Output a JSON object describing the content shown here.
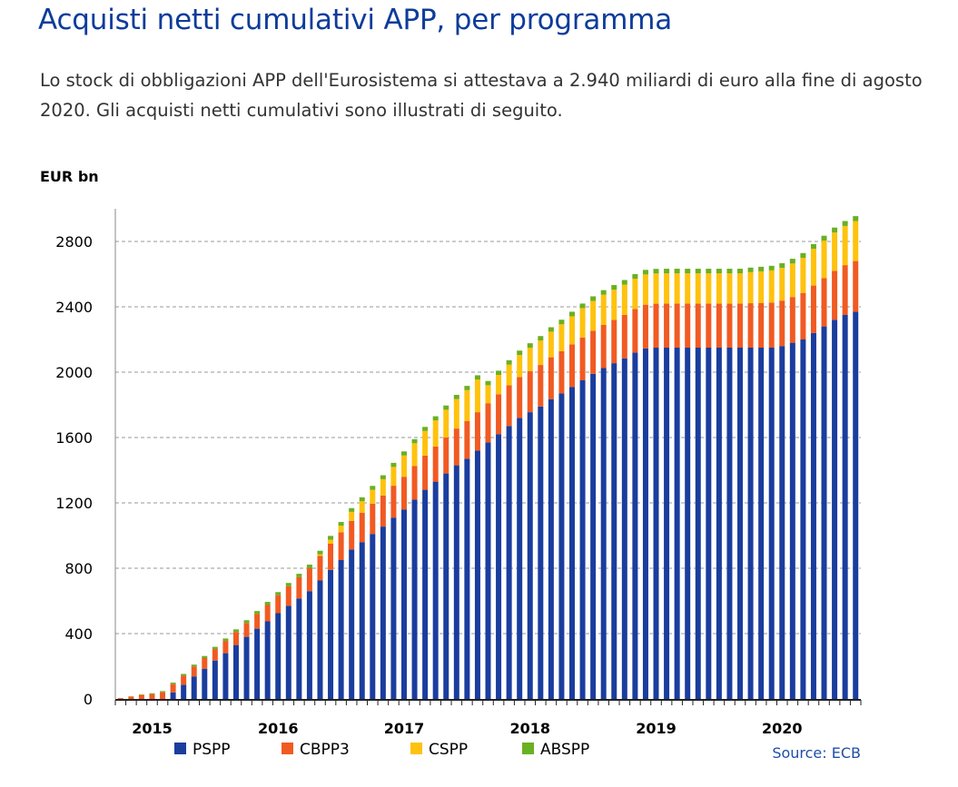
{
  "header": {
    "title": "Acquisti netti cumulativi APP, per programma",
    "intro": "Lo stock di obbligazioni APP dell'Eurosistema si attestava a 2.940 miliardi di euro alla fine di agosto 2020. Gli acquisti netti cumulativi sono illustrati di seguito."
  },
  "chart_data": {
    "type": "bar",
    "stacked": true,
    "unit_label": "EUR bn",
    "xlabel": "",
    "ylabel": "",
    "ylim": [
      0,
      2900
    ],
    "yticks": [
      0,
      400,
      800,
      1200,
      1600,
      2000,
      2400,
      2800
    ],
    "grid": "horizontal dashed",
    "legend_position": "bottom",
    "source": "Source: ECB",
    "year_ticks": [
      {
        "label": "2015",
        "index": 3
      },
      {
        "label": "2016",
        "index": 15
      },
      {
        "label": "2017",
        "index": 27
      },
      {
        "label": "2018",
        "index": 39
      },
      {
        "label": "2019",
        "index": 51
      },
      {
        "label": "2020",
        "index": 63
      }
    ],
    "categories": [
      "2014-10",
      "2014-11",
      "2014-12",
      "2015-01",
      "2015-02",
      "2015-03",
      "2015-04",
      "2015-05",
      "2015-06",
      "2015-07",
      "2015-08",
      "2015-09",
      "2015-10",
      "2015-11",
      "2015-12",
      "2016-01",
      "2016-02",
      "2016-03",
      "2016-04",
      "2016-05",
      "2016-06",
      "2016-07",
      "2016-08",
      "2016-09",
      "2016-10",
      "2016-11",
      "2016-12",
      "2017-01",
      "2017-02",
      "2017-03",
      "2017-04",
      "2017-05",
      "2017-06",
      "2017-07",
      "2017-08",
      "2017-09",
      "2017-10",
      "2017-11",
      "2017-12",
      "2018-01",
      "2018-02",
      "2018-03",
      "2018-04",
      "2018-05",
      "2018-06",
      "2018-07",
      "2018-08",
      "2018-09",
      "2018-10",
      "2018-11",
      "2018-12",
      "2019-01",
      "2019-02",
      "2019-03",
      "2019-04",
      "2019-05",
      "2019-06",
      "2019-07",
      "2019-08",
      "2019-09",
      "2019-10",
      "2019-11",
      "2019-12",
      "2020-01",
      "2020-02",
      "2020-03",
      "2020-04",
      "2020-05",
      "2020-06",
      "2020-07",
      "2020-08"
    ],
    "series": [
      {
        "name": "PSPP",
        "color": "#1a3d9e",
        "values": [
          0,
          0,
          0,
          0,
          0,
          40,
          87,
          138,
          185,
          235,
          280,
          330,
          380,
          430,
          475,
          525,
          570,
          615,
          660,
          725,
          790,
          850,
          915,
          960,
          1010,
          1055,
          1110,
          1160,
          1220,
          1280,
          1330,
          1380,
          1430,
          1470,
          1520,
          1570,
          1620,
          1670,
          1720,
          1755,
          1790,
          1835,
          1870,
          1910,
          1950,
          1990,
          2025,
          2055,
          2085,
          2120,
          2145,
          2150,
          2150,
          2150,
          2150,
          2150,
          2150,
          2150,
          2150,
          2150,
          2150,
          2150,
          2150,
          2160,
          2180,
          2200,
          2240,
          2280,
          2320,
          2350,
          2370
        ]
      },
      {
        "name": "CBPP3",
        "color": "#f15a22",
        "values": [
          5,
          15,
          25,
          30,
          40,
          50,
          55,
          60,
          65,
          70,
          75,
          80,
          85,
          90,
          100,
          110,
          120,
          130,
          140,
          150,
          160,
          170,
          175,
          180,
          185,
          190,
          195,
          200,
          205,
          210,
          215,
          220,
          225,
          230,
          235,
          240,
          245,
          250,
          250,
          252,
          254,
          256,
          258,
          260,
          262,
          263,
          264,
          265,
          266,
          267,
          268,
          269,
          270,
          270,
          270,
          270,
          270,
          270,
          270,
          270,
          272,
          274,
          276,
          278,
          280,
          285,
          290,
          295,
          300,
          305,
          310
        ]
      },
      {
        "name": "CSPP",
        "color": "#ffc20e",
        "values": [
          0,
          0,
          0,
          0,
          0,
          0,
          0,
          0,
          0,
          0,
          0,
          0,
          0,
          0,
          0,
          0,
          0,
          0,
          0,
          10,
          25,
          40,
          55,
          70,
          85,
          100,
          115,
          130,
          140,
          150,
          160,
          170,
          180,
          190,
          200,
          110,
          118,
          126,
          135,
          143,
          150,
          157,
          165,
          172,
          180,
          183,
          185,
          185,
          185,
          185,
          185,
          185,
          185,
          185,
          185,
          185,
          185,
          185,
          185,
          185,
          190,
          193,
          197,
          200,
          205,
          215,
          225,
          230,
          235,
          240,
          245
        ]
      },
      {
        "name": "ABSPP",
        "color": "#6ab023",
        "values": [
          0,
          1,
          2,
          5,
          8,
          10,
          11,
          12,
          13,
          14,
          15,
          16,
          17,
          18,
          19,
          19,
          20,
          21,
          22,
          22,
          23,
          23,
          23,
          24,
          24,
          24,
          25,
          25,
          25,
          25,
          25,
          26,
          26,
          26,
          26,
          26,
          26,
          27,
          27,
          27,
          27,
          27,
          28,
          28,
          28,
          28,
          28,
          28,
          28,
          28,
          28,
          28,
          28,
          28,
          28,
          28,
          28,
          28,
          28,
          28,
          28,
          28,
          28,
          29,
          29,
          29,
          29,
          30,
          30,
          30,
          30
        ]
      }
    ]
  }
}
